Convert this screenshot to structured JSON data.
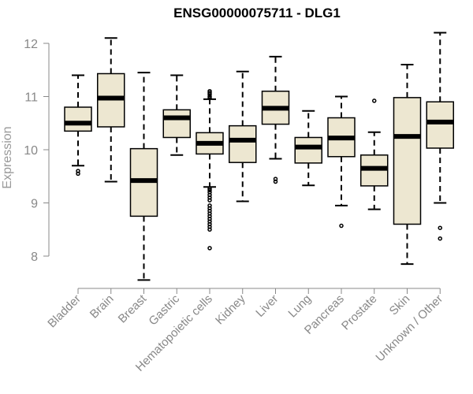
{
  "chart_data": {
    "type": "boxplot",
    "title": "ENSG00000075711 - DLG1",
    "xlabel": "",
    "ylabel": "Expression",
    "ylim": [
      7.5,
      12.3
    ],
    "yticks": [
      8,
      9,
      10,
      11,
      12
    ],
    "colors": {
      "box_fill": "#EDE7D1",
      "box_stroke": "#000000",
      "axis": "#888888",
      "tick_text": "#888888",
      "ylabel_text": "#999999"
    },
    "categories": [
      "Bladder",
      "Brain",
      "Breast",
      "Gastric",
      "Hematopoietic cells",
      "Kidney",
      "Liver",
      "Lung",
      "Pancreas",
      "Prostate",
      "Skin",
      "Unknown / Other"
    ],
    "boxes": [
      {
        "name": "Bladder",
        "whisker_low": 9.7,
        "q1": 10.35,
        "median": 10.5,
        "q3": 10.8,
        "whisker_high": 11.4,
        "outliers": [
          9.6,
          9.55
        ]
      },
      {
        "name": "Brain",
        "whisker_low": 9.4,
        "q1": 10.43,
        "median": 10.97,
        "q3": 11.43,
        "whisker_high": 12.1,
        "outliers": []
      },
      {
        "name": "Breast",
        "whisker_low": 7.55,
        "q1": 8.75,
        "median": 9.42,
        "q3": 10.02,
        "whisker_high": 11.45,
        "outliers": []
      },
      {
        "name": "Gastric",
        "whisker_low": 9.9,
        "q1": 10.23,
        "median": 10.6,
        "q3": 10.75,
        "whisker_high": 11.4,
        "outliers": []
      },
      {
        "name": "Hematopoietic cells",
        "whisker_low": 9.3,
        "q1": 9.92,
        "median": 10.12,
        "q3": 10.32,
        "whisker_high": 10.95,
        "outliers": [
          11.1,
          11.07,
          11.04,
          11.0,
          10.97,
          9.27,
          9.24,
          9.2,
          9.15,
          9.1,
          9.05,
          8.95,
          8.9,
          8.85,
          8.8,
          8.75,
          8.7,
          8.65,
          8.6,
          8.55,
          8.5,
          8.15
        ]
      },
      {
        "name": "Kidney",
        "whisker_low": 9.03,
        "q1": 9.76,
        "median": 10.18,
        "q3": 10.45,
        "whisker_high": 11.47,
        "outliers": []
      },
      {
        "name": "Liver",
        "whisker_low": 9.83,
        "q1": 10.48,
        "median": 10.78,
        "q3": 11.1,
        "whisker_high": 11.75,
        "outliers": [
          9.45,
          9.4
        ]
      },
      {
        "name": "Lung",
        "whisker_low": 9.33,
        "q1": 9.75,
        "median": 10.05,
        "q3": 10.23,
        "whisker_high": 10.73,
        "outliers": []
      },
      {
        "name": "Pancreas",
        "whisker_low": 8.95,
        "q1": 9.87,
        "median": 10.22,
        "q3": 10.6,
        "whisker_high": 11.0,
        "outliers": [
          8.57
        ]
      },
      {
        "name": "Prostate",
        "whisker_low": 8.88,
        "q1": 9.32,
        "median": 9.65,
        "q3": 9.9,
        "whisker_high": 10.33,
        "outliers": [
          10.92
        ]
      },
      {
        "name": "Skin",
        "whisker_low": 7.85,
        "q1": 8.6,
        "median": 10.25,
        "q3": 10.98,
        "whisker_high": 11.6,
        "outliers": []
      },
      {
        "name": "Unknown / Other",
        "whisker_low": 9.0,
        "q1": 10.03,
        "median": 10.52,
        "q3": 10.9,
        "whisker_high": 12.2,
        "outliers": [
          8.53,
          8.33
        ]
      }
    ]
  }
}
